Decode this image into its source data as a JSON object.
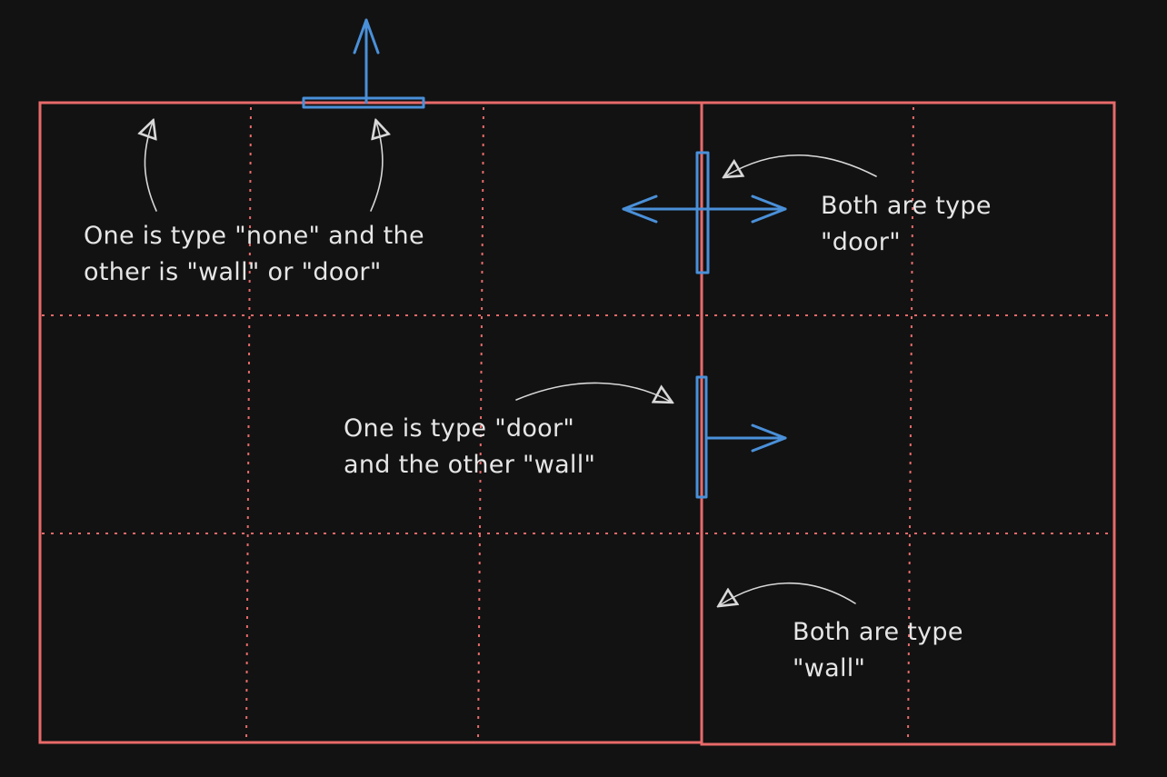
{
  "colors": {
    "background": "#121212",
    "room_outline": "#e86a6a",
    "grid_dotted": "#e86a6a",
    "connection": "#4a90d9",
    "annotation_text": "#e6e6e6",
    "annotation_arrow": "#d8d8d8"
  },
  "annotations": {
    "none_wall": {
      "line1": "One is type \"none\" and the",
      "line2": "other is \"wall\" or \"door\""
    },
    "both_door": {
      "line1": "Both are type",
      "line2": "\"door\""
    },
    "door_wall": {
      "line1": "One is type \"door\"",
      "line2": "and the other \"wall\""
    },
    "both_wall": {
      "line1": "Both are type",
      "line2": "\"wall\""
    }
  }
}
